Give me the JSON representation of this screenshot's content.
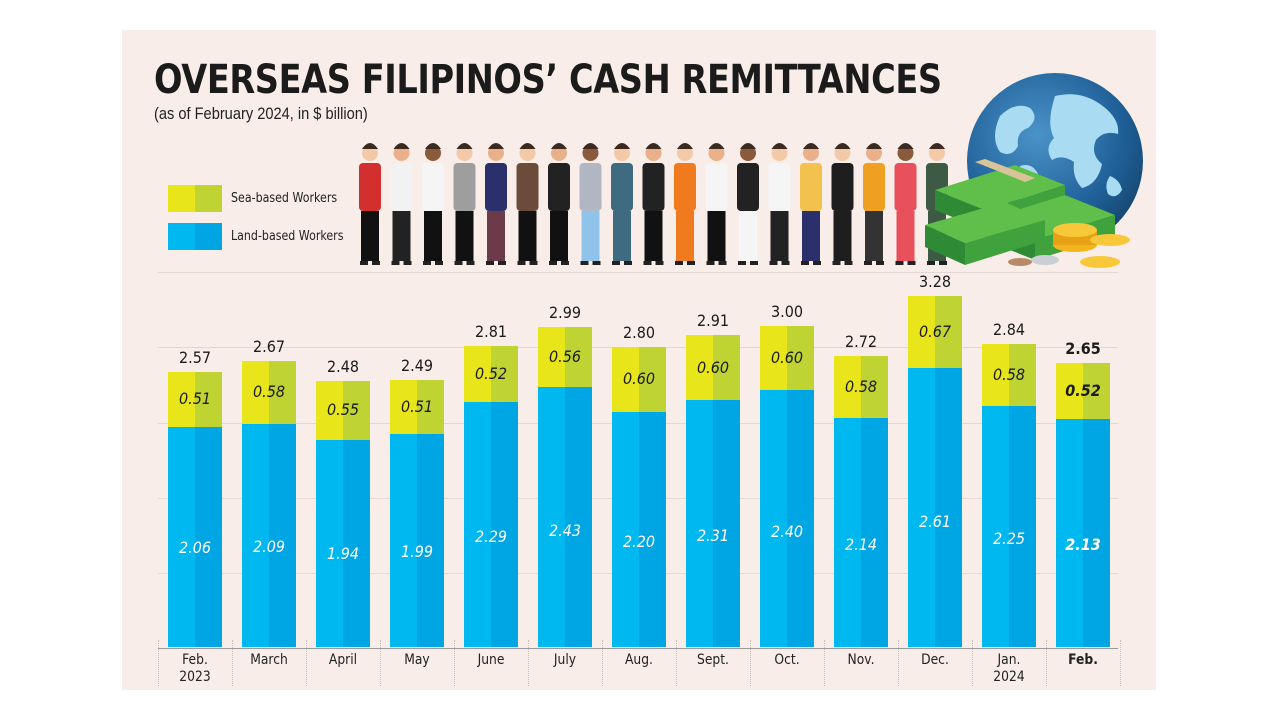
{
  "header": {
    "title": "OVERSEAS FILIPINOS’ CASH REMITTANCES",
    "subtitle": "(as of February 2024, in $ billion)"
  },
  "legend": [
    {
      "label": "Sea-based Workers",
      "colors": [
        "#e8e61a",
        "#bfd432"
      ]
    },
    {
      "label": "Land-based Workers",
      "colors": [
        "#00b8f0",
        "#00a5e3"
      ]
    }
  ],
  "colors": {
    "sea_light": "#e8e61a",
    "sea_dark": "#bfd432",
    "land_light": "#00b8f0",
    "land_dark": "#00a5e3",
    "background": "#f8ede8"
  },
  "illustration": {
    "icons": [
      "workers-group-illustration",
      "globe-icon",
      "cash-stack-icon",
      "coin-stack-icon"
    ]
  },
  "chart_data": {
    "type": "bar",
    "stacked": true,
    "title": "OVERSEAS FILIPINOS’ CASH REMITTANCES",
    "subtitle": "(as of February 2024, in $ billion)",
    "xlabel": "",
    "ylabel": "$ billion",
    "ylim": [
      0,
      3.5
    ],
    "grid": true,
    "legend_position": "top-left",
    "categories": [
      "Feb. 2023",
      "March",
      "April",
      "May",
      "June",
      "July",
      "Aug.",
      "Sept.",
      "Oct.",
      "Nov.",
      "Dec.",
      "Jan. 2024",
      "Feb."
    ],
    "category_lines": [
      [
        "Feb.",
        "2023"
      ],
      [
        "March"
      ],
      [
        "April"
      ],
      [
        "May"
      ],
      [
        "June"
      ],
      [
        "July"
      ],
      [
        "Aug."
      ],
      [
        "Sept."
      ],
      [
        "Oct."
      ],
      [
        "Nov."
      ],
      [
        "Dec."
      ],
      [
        "Jan.",
        "2024"
      ],
      [
        "Feb."
      ]
    ],
    "series": [
      {
        "name": "Land-based Workers",
        "values": [
          2.06,
          2.09,
          1.94,
          1.99,
          2.29,
          2.43,
          2.2,
          2.31,
          2.4,
          2.14,
          2.61,
          2.25,
          2.13
        ]
      },
      {
        "name": "Sea-based Workers",
        "values": [
          0.51,
          0.58,
          0.55,
          0.51,
          0.52,
          0.56,
          0.6,
          0.6,
          0.6,
          0.58,
          0.67,
          0.58,
          0.52
        ]
      }
    ],
    "totals": [
      2.57,
      2.67,
      2.48,
      2.49,
      2.81,
      2.99,
      2.8,
      2.91,
      3.0,
      2.72,
      3.28,
      2.84,
      2.65
    ],
    "total_labels": [
      "2.57",
      "2.67",
      "2.48",
      "2.49",
      "2.81",
      "2.99",
      "2.80",
      "2.91",
      "3.00",
      "2.72",
      "3.28",
      "2.84",
      "2.65"
    ],
    "land_labels": [
      "2.06",
      "2.09",
      "1.94",
      "1.99",
      "2.29",
      "2.43",
      "2.20",
      "2.31",
      "2.40",
      "2.14",
      "2.61",
      "2.25",
      "2.13"
    ],
    "sea_labels": [
      "0.51",
      "0.58",
      "0.55",
      "0.51",
      "0.52",
      "0.56",
      "0.60",
      "0.60",
      "0.60",
      "0.58",
      "0.67",
      "0.58",
      "0.52"
    ],
    "highlight_index": 12
  }
}
